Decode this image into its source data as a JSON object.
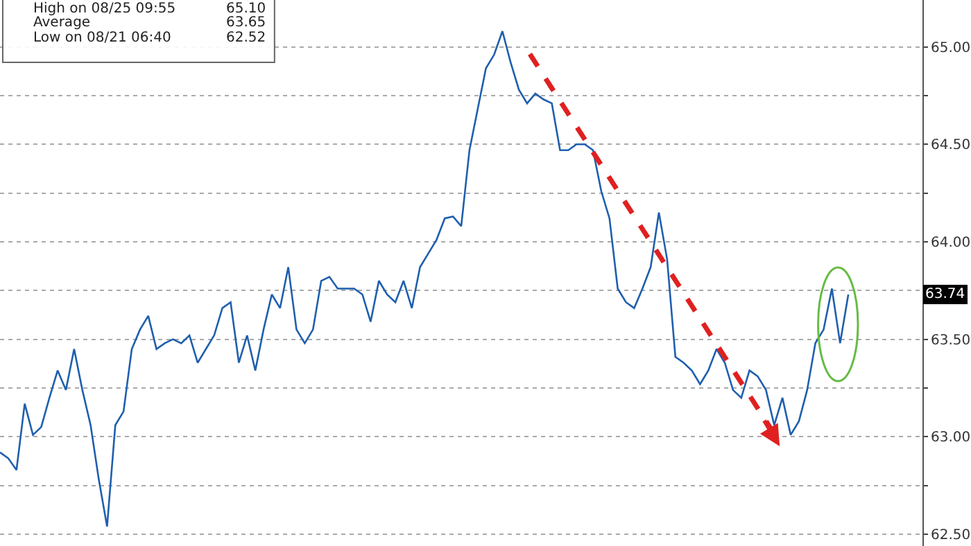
{
  "chart_data": {
    "type": "line",
    "categories": [
      null,
      null,
      null,
      null,
      null,
      null,
      null,
      null,
      null,
      null,
      null,
      null,
      null,
      null,
      null,
      null,
      null,
      null,
      null,
      null,
      null,
      null,
      null,
      null,
      null,
      null,
      null,
      null,
      null,
      null,
      null,
      null,
      null,
      null,
      null,
      null,
      null,
      null,
      null,
      null,
      null,
      null,
      null,
      null,
      null,
      null,
      null,
      null,
      null,
      null,
      null,
      null,
      null,
      null,
      null,
      null,
      null,
      null,
      null,
      null,
      null,
      null,
      null,
      null,
      null,
      null,
      null,
      null,
      null,
      null,
      null,
      null,
      null,
      null,
      null,
      null,
      null,
      null,
      null,
      null,
      null,
      null,
      null,
      null,
      null,
      null,
      null,
      null,
      null,
      null,
      null,
      null,
      null,
      null,
      null,
      null,
      null,
      null,
      null,
      null,
      null,
      null,
      null,
      null
    ],
    "series": [
      {
        "color": "#1f5fae",
        "values": [
          62.92,
          62.89,
          62.83,
          63.17,
          63.01,
          63.05,
          63.2,
          63.34,
          63.24,
          63.45,
          63.24,
          63.06,
          62.78,
          62.54,
          63.06,
          63.13,
          63.45,
          63.55,
          63.62,
          63.45,
          63.48,
          63.5,
          63.48,
          63.52,
          63.38,
          63.45,
          63.52,
          63.66,
          63.69,
          63.38,
          63.52,
          63.34,
          63.55,
          63.73,
          63.66,
          63.87,
          63.55,
          63.48,
          63.55,
          63.8,
          63.82,
          63.76,
          63.76,
          63.76,
          63.73,
          63.59,
          63.8,
          63.73,
          63.69,
          63.8,
          63.66,
          63.87,
          63.94,
          64.01,
          64.12,
          64.13,
          64.08,
          64.47,
          64.68,
          64.89,
          64.96,
          65.08,
          64.92,
          64.78,
          64.71,
          64.76,
          64.73,
          64.71,
          64.47,
          64.47,
          64.5,
          64.5,
          64.47,
          64.26,
          64.12,
          63.76,
          63.69,
          63.66,
          63.76,
          63.87,
          64.15,
          63.91,
          63.41,
          63.38,
          63.34,
          63.27,
          63.34,
          63.45,
          63.38,
          63.24,
          63.2,
          63.34,
          63.31,
          63.24,
          63.06,
          63.2,
          63.01,
          63.08,
          63.24,
          63.48,
          63.55,
          63.76,
          63.48,
          63.73
        ]
      }
    ],
    "ylim": [
      62.44,
      65.24
    ],
    "yticks": [
      {
        "value": 62.5,
        "label": "62.50"
      },
      {
        "value": 62.75,
        "label": null
      },
      {
        "value": 63.0,
        "label": "63.00"
      },
      {
        "value": 63.25,
        "label": null
      },
      {
        "value": 63.5,
        "label": "63.50"
      },
      {
        "value": 63.75,
        "label": null
      },
      {
        "value": 64.0,
        "label": "64.00"
      },
      {
        "value": 64.25,
        "label": null
      },
      {
        "value": 64.5,
        "label": "64.50"
      },
      {
        "value": 64.75,
        "label": null
      },
      {
        "value": 65.0,
        "label": "65.00"
      }
    ],
    "grid": "y",
    "tick_labels": "y",
    "annotations": [
      "High on 08/25 09:55",
      "65.10",
      "Average",
      "63.65",
      "Low on 08/21 06:40",
      "62.52",
      "63.74"
    ]
  }
}
